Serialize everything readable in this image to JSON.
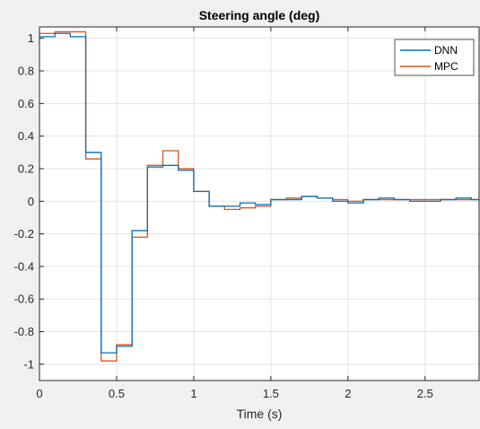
{
  "chart_data": {
    "type": "line",
    "title": "Steering angle (deg)",
    "xlabel": "Time (s)",
    "ylabel": "",
    "xlim": [
      0,
      2.85
    ],
    "ylim": [
      -1.1,
      1.07
    ],
    "xticks": [
      0,
      0.5,
      1,
      1.5,
      2,
      2.5
    ],
    "xtick_labels": [
      "0",
      "0.5",
      "1",
      "1.5",
      "2",
      "2.5"
    ],
    "yticks": [
      1,
      0.8,
      0.6,
      0.4,
      0.2,
      0,
      -0.2,
      -0.4,
      -0.6,
      -0.8,
      -1
    ],
    "ytick_labels": [
      "1",
      "0.8",
      "0.6",
      "0.4",
      "0.2",
      "0",
      "-0.2",
      "-0.4",
      "-0.6",
      "-0.8",
      "-1"
    ],
    "grid": true,
    "legend_position": "top-right",
    "step": true,
    "step_width": 0.1,
    "x": [
      0,
      0.1,
      0.2,
      0.3,
      0.4,
      0.5,
      0.6,
      0.7,
      0.8,
      0.9,
      1.0,
      1.1,
      1.2,
      1.3,
      1.4,
      1.5,
      1.6,
      1.7,
      1.8,
      1.9,
      2.0,
      2.1,
      2.2,
      2.3,
      2.4,
      2.5,
      2.6,
      2.7,
      2.8
    ],
    "series": [
      {
        "name": "DNN",
        "color": "#0072bd",
        "values": [
          1.01,
          1.03,
          1.01,
          0.3,
          -0.93,
          -0.89,
          -0.18,
          0.21,
          0.22,
          0.19,
          0.06,
          -0.03,
          -0.03,
          -0.01,
          -0.02,
          0.01,
          0.01,
          0.03,
          0.02,
          0.0,
          -0.01,
          0.01,
          0.02,
          0.01,
          0.0,
          0.0,
          0.01,
          0.02,
          0.01
        ]
      },
      {
        "name": "MPC",
        "color": "#d95319",
        "values": [
          1.03,
          1.04,
          1.04,
          0.26,
          -0.98,
          -0.88,
          -0.22,
          0.22,
          0.31,
          0.2,
          0.06,
          -0.03,
          -0.05,
          -0.04,
          -0.03,
          0.01,
          0.02,
          0.03,
          0.02,
          0.01,
          0.0,
          0.01,
          0.01,
          0.01,
          0.01,
          0.01,
          0.01,
          0.01,
          0.01
        ]
      }
    ]
  }
}
